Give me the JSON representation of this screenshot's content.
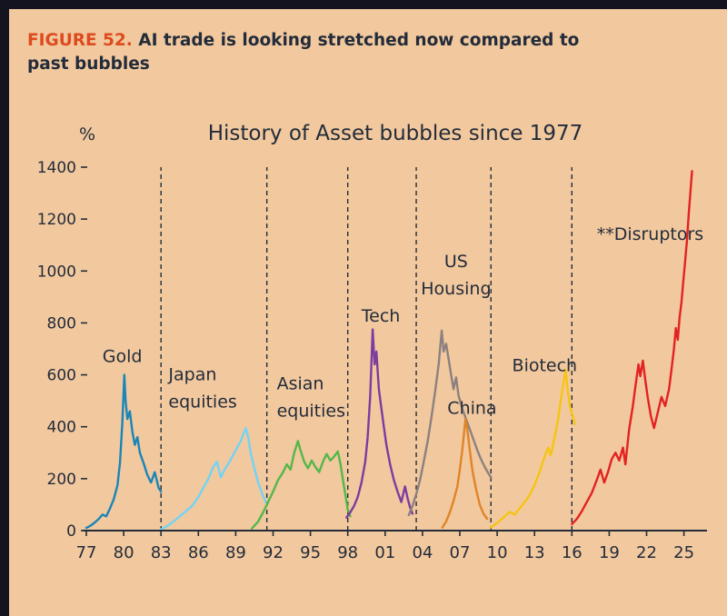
{
  "figure": {
    "label": "FIGURE 52.",
    "title": "AI trade is looking stretched now compared to past bubbles"
  },
  "colors": {
    "background": "#141420",
    "panel": "#f2c89e",
    "text": "#232c3a",
    "figure_label": "#dd4b1f"
  },
  "chart_data": {
    "type": "line",
    "title": "History of Asset bubbles since 1977",
    "xlabel": "",
    "ylabel": "%",
    "ylim": [
      0,
      1400
    ],
    "yticks": [
      0,
      200,
      400,
      600,
      800,
      1000,
      1200,
      1400
    ],
    "grid": false,
    "legend": "none (inline annotations)",
    "xticks": [
      {
        "year": 1977,
        "label": "77"
      },
      {
        "year": 1980,
        "label": "80"
      },
      {
        "year": 1983,
        "label": "83"
      },
      {
        "year": 1986,
        "label": "86"
      },
      {
        "year": 1989,
        "label": "89"
      },
      {
        "year": 1992,
        "label": "92"
      },
      {
        "year": 1995,
        "label": "95"
      },
      {
        "year": 1998,
        "label": "98"
      },
      {
        "year": 2001,
        "label": "01"
      },
      {
        "year": 2004,
        "label": "04"
      },
      {
        "year": 2007,
        "label": "07"
      },
      {
        "year": 2010,
        "label": "10"
      },
      {
        "year": 2013,
        "label": "13"
      },
      {
        "year": 2016,
        "label": "16"
      },
      {
        "year": 2019,
        "label": "19"
      },
      {
        "year": 2022,
        "label": "22"
      },
      {
        "year": 2025,
        "label": "25"
      }
    ],
    "separators": [
      1983,
      1991.5,
      1998,
      2003.5,
      2009.5,
      2016
    ],
    "series": [
      {
        "name": "Gold",
        "color": "#1a85b8",
        "label": {
          "lines": [
            "Gold"
          ],
          "x": 1978.3,
          "y": 650,
          "anchor": "start"
        },
        "points": [
          [
            1977.0,
            10
          ],
          [
            1977.3,
            18
          ],
          [
            1977.6,
            28
          ],
          [
            1978.0,
            45
          ],
          [
            1978.3,
            62
          ],
          [
            1978.6,
            55
          ],
          [
            1978.9,
            85
          ],
          [
            1979.2,
            120
          ],
          [
            1979.5,
            175
          ],
          [
            1979.7,
            260
          ],
          [
            1979.9,
            420
          ],
          [
            1980.05,
            600
          ],
          [
            1980.15,
            500
          ],
          [
            1980.3,
            430
          ],
          [
            1980.5,
            460
          ],
          [
            1980.7,
            380
          ],
          [
            1980.9,
            330
          ],
          [
            1981.1,
            360
          ],
          [
            1981.3,
            300
          ],
          [
            1981.6,
            260
          ],
          [
            1981.9,
            215
          ],
          [
            1982.2,
            185
          ],
          [
            1982.5,
            225
          ],
          [
            1982.8,
            165
          ],
          [
            1983.0,
            150
          ]
        ]
      },
      {
        "name": "Japan equities",
        "color": "#72d4f5",
        "label": {
          "lines": [
            "Japan",
            "equities"
          ],
          "x": 1983.6,
          "y": 580,
          "anchor": "start"
        },
        "points": [
          [
            1983.0,
            5
          ],
          [
            1983.5,
            18
          ],
          [
            1984.0,
            35
          ],
          [
            1984.5,
            55
          ],
          [
            1985.0,
            75
          ],
          [
            1985.5,
            95
          ],
          [
            1986.0,
            130
          ],
          [
            1986.4,
            165
          ],
          [
            1986.8,
            200
          ],
          [
            1987.2,
            245
          ],
          [
            1987.5,
            265
          ],
          [
            1987.8,
            205
          ],
          [
            1988.1,
            235
          ],
          [
            1988.5,
            265
          ],
          [
            1989.0,
            310
          ],
          [
            1989.4,
            345
          ],
          [
            1989.8,
            395
          ],
          [
            1990.0,
            360
          ],
          [
            1990.2,
            300
          ],
          [
            1990.5,
            240
          ],
          [
            1990.8,
            185
          ],
          [
            1991.1,
            145
          ],
          [
            1991.4,
            110
          ]
        ]
      },
      {
        "name": "Asian equities",
        "color": "#53b84a",
        "label": {
          "lines": [
            "Asian",
            "equities"
          ],
          "x": 1992.3,
          "y": 545,
          "anchor": "start"
        },
        "points": [
          [
            1990.3,
            8
          ],
          [
            1990.8,
            35
          ],
          [
            1991.2,
            70
          ],
          [
            1991.6,
            110
          ],
          [
            1992.0,
            150
          ],
          [
            1992.4,
            195
          ],
          [
            1992.8,
            225
          ],
          [
            1993.1,
            255
          ],
          [
            1993.4,
            235
          ],
          [
            1993.7,
            300
          ],
          [
            1994.0,
            345
          ],
          [
            1994.2,
            310
          ],
          [
            1994.5,
            265
          ],
          [
            1994.8,
            240
          ],
          [
            1995.1,
            270
          ],
          [
            1995.4,
            245
          ],
          [
            1995.7,
            225
          ],
          [
            1996.0,
            265
          ],
          [
            1996.3,
            295
          ],
          [
            1996.6,
            270
          ],
          [
            1996.9,
            285
          ],
          [
            1997.2,
            305
          ],
          [
            1997.4,
            260
          ],
          [
            1997.6,
            200
          ],
          [
            1997.8,
            140
          ],
          [
            1998.0,
            80
          ],
          [
            1998.2,
            55
          ]
        ]
      },
      {
        "name": "Tech",
        "color": "#7a3da0",
        "label": {
          "lines": [
            "Tech"
          ],
          "x": 1999.1,
          "y": 805,
          "anchor": "start"
        },
        "points": [
          [
            1997.9,
            50
          ],
          [
            1998.2,
            70
          ],
          [
            1998.5,
            95
          ],
          [
            1998.8,
            130
          ],
          [
            1999.1,
            185
          ],
          [
            1999.4,
            265
          ],
          [
            1999.6,
            360
          ],
          [
            1999.8,
            520
          ],
          [
            2000.0,
            775
          ],
          [
            2000.15,
            640
          ],
          [
            2000.3,
            690
          ],
          [
            2000.5,
            545
          ],
          [
            2000.7,
            470
          ],
          [
            2000.9,
            400
          ],
          [
            2001.1,
            330
          ],
          [
            2001.4,
            255
          ],
          [
            2001.7,
            195
          ],
          [
            2002.0,
            150
          ],
          [
            2002.3,
            110
          ],
          [
            2002.6,
            170
          ],
          [
            2002.8,
            125
          ],
          [
            2003.0,
            90
          ],
          [
            2003.2,
            65
          ]
        ]
      },
      {
        "name": "US Housing",
        "color": "#8d8080",
        "label": {
          "lines": [
            "US",
            "Housing"
          ],
          "x": 2006.7,
          "y": 1015,
          "anchor": "middle"
        },
        "points": [
          [
            2002.9,
            60
          ],
          [
            2003.2,
            95
          ],
          [
            2003.5,
            140
          ],
          [
            2003.8,
            195
          ],
          [
            2004.1,
            265
          ],
          [
            2004.4,
            340
          ],
          [
            2004.7,
            430
          ],
          [
            2005.0,
            530
          ],
          [
            2005.3,
            640
          ],
          [
            2005.55,
            770
          ],
          [
            2005.7,
            690
          ],
          [
            2005.9,
            720
          ],
          [
            2006.1,
            660
          ],
          [
            2006.3,
            600
          ],
          [
            2006.5,
            545
          ],
          [
            2006.7,
            590
          ],
          [
            2006.9,
            520
          ],
          [
            2007.2,
            470
          ],
          [
            2007.5,
            430
          ],
          [
            2007.8,
            390
          ],
          [
            2008.1,
            350
          ],
          [
            2008.4,
            310
          ],
          [
            2008.7,
            275
          ],
          [
            2009.0,
            245
          ],
          [
            2009.3,
            220
          ],
          [
            2009.5,
            205
          ]
        ]
      },
      {
        "name": "China",
        "color": "#e08428",
        "label": {
          "lines": [
            "China"
          ],
          "x": 2006.0,
          "y": 450,
          "anchor": "start"
        },
        "points": [
          [
            2005.6,
            12
          ],
          [
            2005.9,
            35
          ],
          [
            2006.2,
            70
          ],
          [
            2006.5,
            115
          ],
          [
            2006.8,
            170
          ],
          [
            2007.0,
            235
          ],
          [
            2007.2,
            310
          ],
          [
            2007.45,
            430
          ],
          [
            2007.6,
            390
          ],
          [
            2007.8,
            310
          ],
          [
            2008.0,
            235
          ],
          [
            2008.3,
            160
          ],
          [
            2008.6,
            100
          ],
          [
            2008.9,
            65
          ],
          [
            2009.2,
            45
          ]
        ]
      },
      {
        "name": "Biotech",
        "color": "#f5c513",
        "label": {
          "lines": [
            "Biotech"
          ],
          "x": 2011.2,
          "y": 615,
          "anchor": "start"
        },
        "points": [
          [
            2009.5,
            12
          ],
          [
            2010.0,
            30
          ],
          [
            2010.5,
            50
          ],
          [
            2011.0,
            72
          ],
          [
            2011.4,
            62
          ],
          [
            2011.8,
            85
          ],
          [
            2012.2,
            110
          ],
          [
            2012.6,
            135
          ],
          [
            2013.0,
            175
          ],
          [
            2013.4,
            225
          ],
          [
            2013.8,
            285
          ],
          [
            2014.1,
            320
          ],
          [
            2014.3,
            290
          ],
          [
            2014.6,
            355
          ],
          [
            2014.9,
            430
          ],
          [
            2015.1,
            500
          ],
          [
            2015.35,
            575
          ],
          [
            2015.5,
            620
          ],
          [
            2015.65,
            545
          ],
          [
            2015.85,
            480
          ],
          [
            2016.05,
            445
          ],
          [
            2016.25,
            410
          ]
        ]
      },
      {
        "name": "Disruptors",
        "color": "#e32222",
        "label": {
          "lines": [
            "**Disruptors"
          ],
          "x": 2018.0,
          "y": 1120,
          "anchor": "start"
        },
        "points": [
          [
            2016.0,
            25
          ],
          [
            2016.4,
            45
          ],
          [
            2016.8,
            75
          ],
          [
            2017.2,
            110
          ],
          [
            2017.6,
            145
          ],
          [
            2018.0,
            195
          ],
          [
            2018.3,
            235
          ],
          [
            2018.6,
            185
          ],
          [
            2018.9,
            225
          ],
          [
            2019.2,
            275
          ],
          [
            2019.5,
            300
          ],
          [
            2019.8,
            270
          ],
          [
            2020.1,
            320
          ],
          [
            2020.3,
            255
          ],
          [
            2020.6,
            390
          ],
          [
            2020.9,
            480
          ],
          [
            2021.1,
            555
          ],
          [
            2021.35,
            640
          ],
          [
            2021.5,
            595
          ],
          [
            2021.7,
            655
          ],
          [
            2021.9,
            580
          ],
          [
            2022.1,
            510
          ],
          [
            2022.35,
            440
          ],
          [
            2022.6,
            395
          ],
          [
            2022.9,
            455
          ],
          [
            2023.2,
            515
          ],
          [
            2023.5,
            480
          ],
          [
            2023.8,
            545
          ],
          [
            2024.0,
            620
          ],
          [
            2024.2,
            700
          ],
          [
            2024.35,
            780
          ],
          [
            2024.5,
            735
          ],
          [
            2024.65,
            820
          ],
          [
            2024.8,
            880
          ],
          [
            2024.95,
            960
          ],
          [
            2025.1,
            1040
          ],
          [
            2025.25,
            1120
          ],
          [
            2025.4,
            1230
          ],
          [
            2025.55,
            1320
          ],
          [
            2025.65,
            1385
          ]
        ]
      }
    ]
  }
}
